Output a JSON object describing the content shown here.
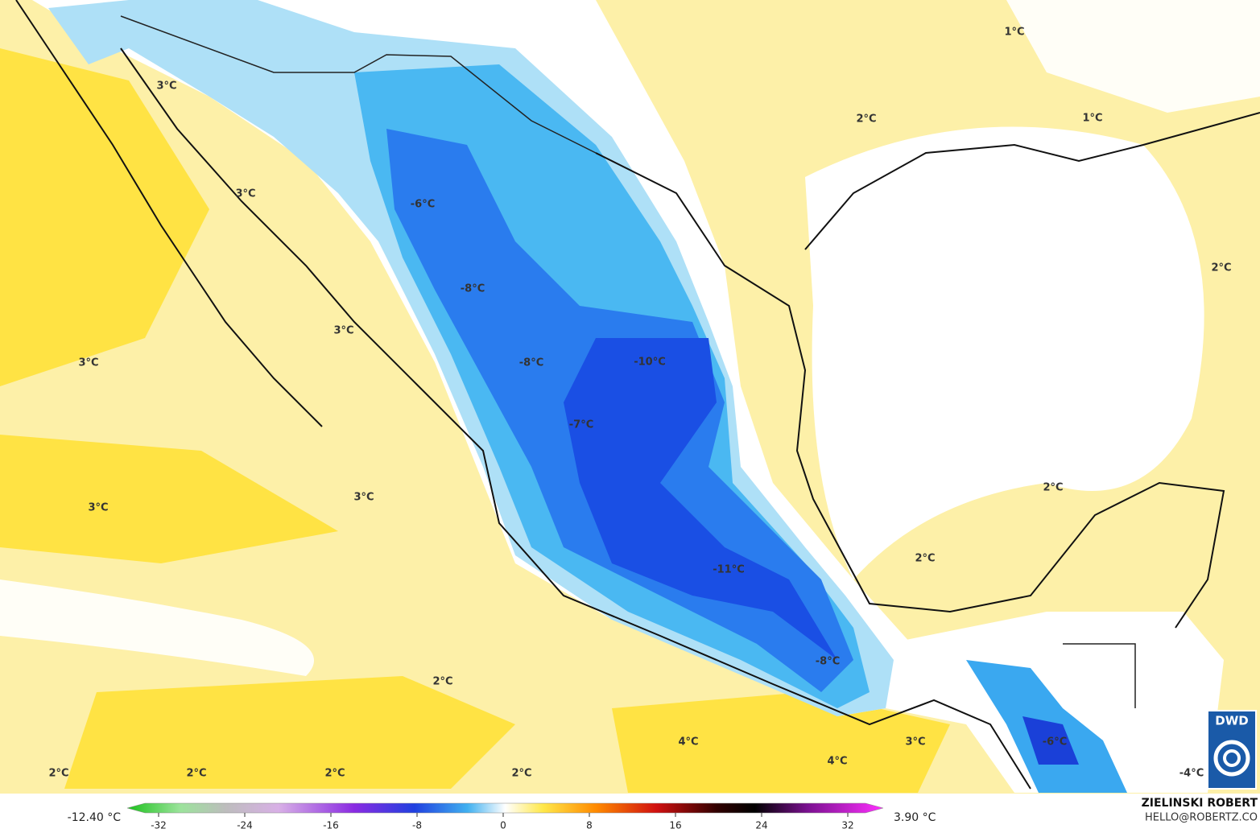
{
  "map": {
    "labels": [
      "1°C",
      "3°C",
      "2°C",
      "1°C",
      "3°C",
      "-6°C",
      "2°C",
      "-8°C",
      "3°C",
      "3°C",
      "-8°C",
      "-10°C",
      "-7°C",
      "2°C",
      "3°C",
      "3°C",
      "2°C",
      "-11°C",
      "-8°C",
      "2°C",
      "4°C",
      "3°C",
      "4°C",
      "-6°C",
      "2°C",
      "2°C",
      "2°C",
      "2°C",
      "-4°C"
    ],
    "colorbar": {
      "min_label": "-12.40 °C",
      "max_label": "3.90 °C",
      "range": [
        -32,
        32
      ],
      "ticks": [
        -32,
        -24,
        -16,
        -8,
        0,
        8,
        16,
        24,
        32
      ]
    },
    "author": "ZIELINSKI ROBERT",
    "contact": "HELLO@ROBERTZ.CO",
    "logo": "DWD"
  }
}
